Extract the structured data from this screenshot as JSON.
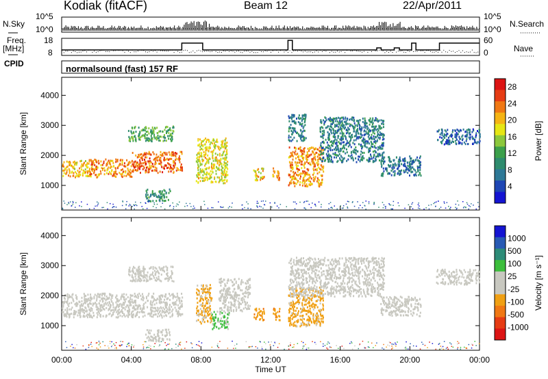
{
  "header": {
    "station": "Kodiak (fitACF)",
    "beam": "Beam 12",
    "date": "22/Apr/2011"
  },
  "status_panel": {
    "labels": {
      "nsky": "N.Sky",
      "freq": "Freq.",
      "freq_unit": "[MHz]",
      "cpid": "CPID",
      "nsearch": "N.Search",
      "nave": "Nave"
    },
    "noise_ticks": [
      "10^5",
      "10^0"
    ],
    "freq_ticks": [
      "18",
      "8"
    ],
    "nave_ticks": [
      "60",
      "0"
    ],
    "cpid_text": "normalsound (fast) 157 RF",
    "freq_steps": [
      {
        "t": 0.0,
        "f": 10.5
      },
      {
        "t": 6.9,
        "f": 15.5
      },
      {
        "t": 8.1,
        "f": 10.5
      },
      {
        "t": 13.0,
        "f": 17.5
      },
      {
        "t": 13.25,
        "f": 10.5
      },
      {
        "t": 18.1,
        "f": 12.0
      },
      {
        "t": 18.35,
        "f": 10.5
      },
      {
        "t": 19.1,
        "f": 12.0
      },
      {
        "t": 19.4,
        "f": 10.5
      },
      {
        "t": 20.1,
        "f": 15.5
      },
      {
        "t": 20.35,
        "f": 10.5
      },
      {
        "t": 21.7,
        "f": 15.5
      },
      {
        "t": 24.0,
        "f": 15.5
      }
    ]
  },
  "colors": {
    "power_scale": [
      "#1414d2",
      "#1e46b4",
      "#2d7896",
      "#2f8c6e",
      "#3ca04b",
      "#8cc83c",
      "#e6e614",
      "#f5b414",
      "#f07814",
      "#e63c14",
      "#dc1414"
    ],
    "velocity_scale": [
      "#1414d2",
      "#285ab4",
      "#2d8c78",
      "#3cbe3c",
      "#c8c8c0",
      "#c8c8c0",
      "#f0a014",
      "#f07814",
      "#e63c14",
      "#dc1414"
    ],
    "ground_scatter": "#c8c8c0"
  },
  "chart_data": [
    {
      "type": "heatmap",
      "name": "power",
      "xlabel": "",
      "ylabel": "Slant Range [km]",
      "xlim": [
        0,
        24
      ],
      "ylim": [
        180,
        4600
      ],
      "yticks": [
        1000,
        2000,
        3000,
        4000
      ],
      "colorbar": {
        "label": "Power [dB]",
        "ticks": [
          "4",
          "8",
          "12",
          "16",
          "20",
          "24",
          "28"
        ],
        "range": [
          0,
          30
        ]
      },
      "regions": [
        {
          "t0": 0.0,
          "t1": 1.5,
          "r0": 1300,
          "r1": 1850,
          "value": 20
        },
        {
          "t0": 1.5,
          "t1": 4.0,
          "r0": 1300,
          "r1": 1900,
          "value": 22
        },
        {
          "t0": 4.0,
          "t1": 6.9,
          "r0": 1450,
          "r1": 2150,
          "value": 24
        },
        {
          "t0": 3.8,
          "t1": 6.4,
          "r0": 2500,
          "r1": 3000,
          "value": 12
        },
        {
          "t0": 4.8,
          "t1": 6.2,
          "r0": 500,
          "r1": 900,
          "value": 10
        },
        {
          "t0": 7.7,
          "t1": 9.5,
          "r0": 1100,
          "r1": 2600,
          "value": 18
        },
        {
          "t0": 11.0,
          "t1": 11.6,
          "r0": 1200,
          "r1": 1600,
          "value": 20
        },
        {
          "t0": 12.1,
          "t1": 12.5,
          "r0": 1200,
          "r1": 1600,
          "value": 22
        },
        {
          "t0": 13.0,
          "t1": 15.0,
          "r0": 1000,
          "r1": 2300,
          "value": 22
        },
        {
          "t0": 13.0,
          "t1": 14.0,
          "r0": 2500,
          "r1": 3400,
          "value": 8
        },
        {
          "t0": 14.8,
          "t1": 18.5,
          "r0": 1800,
          "r1": 3300,
          "value": 8
        },
        {
          "t0": 18.3,
          "t1": 20.6,
          "r0": 1350,
          "r1": 2000,
          "value": 7
        },
        {
          "t0": 21.5,
          "t1": 24.0,
          "r0": 2400,
          "r1": 2900,
          "value": 6
        }
      ]
    },
    {
      "type": "heatmap",
      "name": "velocity",
      "xlabel": "Time UT",
      "ylabel": "Slant Range [km]",
      "xlim": [
        0,
        24
      ],
      "ylim": [
        180,
        4600
      ],
      "yticks": [
        1000,
        2000,
        3000,
        4000
      ],
      "xticks": [
        "00:00",
        "04:00",
        "08:00",
        "12:00",
        "16:00",
        "20:00",
        "00:00"
      ],
      "colorbar": {
        "label": "Velocity [m s⁻¹]",
        "ticks": [
          "1000",
          "500",
          "100",
          "25",
          "-25",
          "-100",
          "-500",
          "-1000"
        ],
        "range": [
          -1250,
          1250
        ]
      },
      "regions": [
        {
          "t0": 0.0,
          "t1": 6.9,
          "r0": 1300,
          "r1": 2100,
          "value": 0,
          "ground": true
        },
        {
          "t0": 3.8,
          "t1": 6.4,
          "r0": 2500,
          "r1": 3000,
          "value": 0,
          "ground": true
        },
        {
          "t0": 4.8,
          "t1": 6.2,
          "r0": 500,
          "r1": 900,
          "value": 0,
          "ground": true
        },
        {
          "t0": 7.7,
          "t1": 8.6,
          "r0": 1100,
          "r1": 2400,
          "value": -300
        },
        {
          "t0": 8.6,
          "t1": 9.6,
          "r0": 900,
          "r1": 1500,
          "value": 300
        },
        {
          "t0": 9.0,
          "t1": 10.8,
          "r0": 1500,
          "r1": 2600,
          "value": 0,
          "ground": true
        },
        {
          "t0": 11.0,
          "t1": 11.6,
          "r0": 1200,
          "r1": 1600,
          "value": -400
        },
        {
          "t0": 12.1,
          "t1": 12.5,
          "r0": 1200,
          "r1": 1600,
          "value": -400
        },
        {
          "t0": 13.0,
          "t1": 15.0,
          "r0": 1000,
          "r1": 2300,
          "value": -350
        },
        {
          "t0": 13.0,
          "t1": 18.5,
          "r0": 2000,
          "r1": 3300,
          "value": 0,
          "ground": true
        },
        {
          "t0": 18.3,
          "t1": 20.6,
          "r0": 1350,
          "r1": 2000,
          "value": 0,
          "ground": true
        },
        {
          "t0": 21.5,
          "t1": 24.0,
          "r0": 2400,
          "r1": 2900,
          "value": 0,
          "ground": true
        }
      ]
    }
  ]
}
